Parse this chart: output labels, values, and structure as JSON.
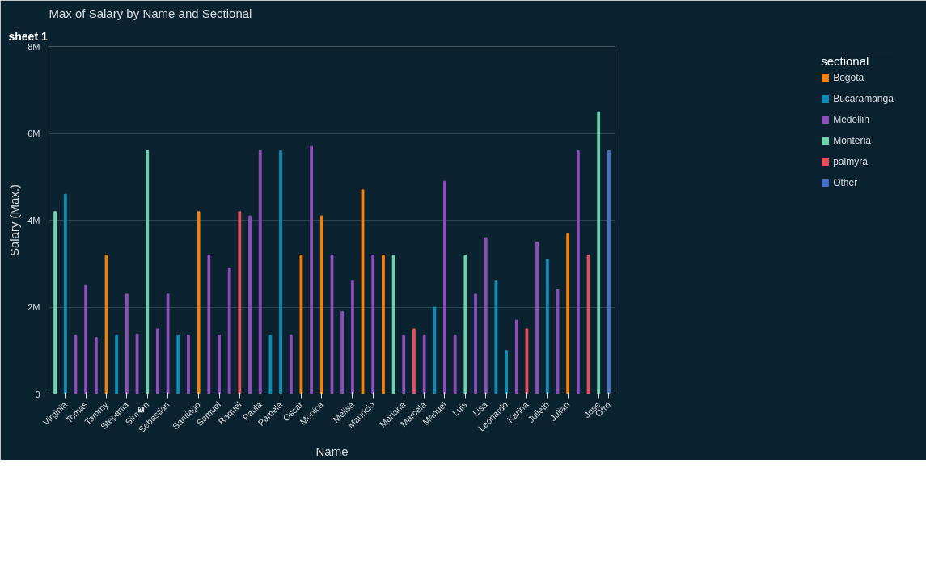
{
  "chart_data": {
    "type": "bar",
    "title": "Max of Salary by Name and Sectional",
    "xlabel": "Name",
    "ylabel": "Salary (Max.)",
    "legend_title": "sectional",
    "annotations": [
      "sheet 1"
    ],
    "categories": [
      null,
      "Virginia",
      null,
      "Tomas",
      null,
      "Tammy",
      null,
      "Stepania",
      null,
      "Sim�n",
      null,
      "Sebastian",
      null,
      null,
      "Santiago",
      null,
      "Samuel",
      null,
      "Raquel",
      null,
      "Paula",
      null,
      "Pamela",
      null,
      "Oscar",
      null,
      "Monica",
      null,
      null,
      "Melisa",
      null,
      "Mauricio",
      null,
      null,
      "Mariana",
      null,
      "Marcela",
      null,
      "Manuel",
      null,
      "Luis",
      null,
      "Lisa",
      null,
      "Leonardo",
      null,
      "Karina",
      null,
      "Julieth",
      null,
      "Julian",
      null,
      null,
      "Jose",
      "Otro"
    ],
    "ylim": [
      0,
      8000000
    ],
    "yticks": [
      0,
      {
        "value": 2000000,
        "label": "2M"
      },
      {
        "value": 4000000,
        "label": "4M"
      },
      {
        "value": 6000000,
        "label": "6M"
      },
      {
        "value": 8000000,
        "label": "8M"
      }
    ],
    "grid": "y",
    "legend": "right",
    "series": [
      {
        "name": "Bogota",
        "color": "#f5820d",
        "values": [
          null,
          null,
          null,
          null,
          null,
          3200000,
          null,
          null,
          null,
          null,
          null,
          null,
          null,
          null,
          4200000,
          null,
          null,
          null,
          null,
          null,
          null,
          null,
          null,
          null,
          3200000,
          null,
          4100000,
          null,
          null,
          null,
          4700000,
          null,
          3200000,
          null,
          null,
          null,
          null,
          null,
          null,
          null,
          null,
          null,
          null,
          null,
          null,
          null,
          null,
          null,
          null,
          null,
          3700000,
          null,
          null,
          null,
          null
        ]
      },
      {
        "name": "Bucaramanga",
        "color": "#0f8eb5",
        "values": [
          null,
          4600000,
          null,
          null,
          null,
          null,
          1360000,
          null,
          null,
          null,
          null,
          null,
          1360000,
          null,
          null,
          null,
          null,
          null,
          null,
          null,
          null,
          1360000,
          5600000,
          null,
          null,
          null,
          null,
          null,
          null,
          null,
          null,
          null,
          null,
          null,
          null,
          null,
          null,
          2000000,
          null,
          null,
          null,
          null,
          null,
          2600000,
          1000000,
          null,
          null,
          null,
          3100000,
          null,
          null,
          null,
          null,
          null,
          null
        ]
      },
      {
        "name": "Medellin",
        "color": "#8e4fb8",
        "values": [
          null,
          null,
          1360000,
          2500000,
          1300000,
          null,
          null,
          2300000,
          1380000,
          null,
          1500000,
          2300000,
          null,
          1360000,
          null,
          3200000,
          1360000,
          2900000,
          null,
          4100000,
          5600000,
          null,
          null,
          1360000,
          null,
          5700000,
          null,
          3200000,
          1900000,
          2600000,
          null,
          3200000,
          null,
          null,
          1360000,
          null,
          1360000,
          null,
          4900000,
          1360000,
          null,
          2300000,
          3600000,
          null,
          null,
          1700000,
          null,
          3500000,
          null,
          2400000,
          null,
          5600000,
          null,
          null,
          null
        ]
      },
      {
        "name": "Monteria",
        "color": "#6fd3ab",
        "values": [
          4200000,
          null,
          null,
          null,
          null,
          null,
          null,
          null,
          null,
          5600000,
          null,
          null,
          null,
          null,
          null,
          null,
          null,
          null,
          null,
          null,
          null,
          null,
          null,
          null,
          null,
          null,
          null,
          null,
          null,
          null,
          null,
          null,
          null,
          3200000,
          null,
          null,
          null,
          null,
          null,
          null,
          3200000,
          null,
          null,
          null,
          null,
          null,
          null,
          null,
          null,
          null,
          null,
          null,
          null,
          6500000,
          null
        ]
      },
      {
        "name": "palmyra",
        "color": "#e8505b",
        "values": [
          null,
          null,
          null,
          null,
          null,
          null,
          null,
          null,
          null,
          null,
          null,
          null,
          null,
          null,
          null,
          null,
          null,
          null,
          4200000,
          null,
          null,
          null,
          null,
          null,
          null,
          null,
          null,
          null,
          null,
          null,
          null,
          null,
          null,
          null,
          null,
          1500000,
          null,
          null,
          null,
          null,
          null,
          null,
          null,
          null,
          null,
          null,
          1500000,
          null,
          null,
          null,
          null,
          null,
          3200000,
          null,
          null
        ]
      },
      {
        "name": "Other",
        "color": "#4a6fc6",
        "values": [
          null,
          null,
          null,
          null,
          null,
          null,
          null,
          null,
          null,
          null,
          null,
          null,
          null,
          null,
          null,
          null,
          null,
          null,
          null,
          null,
          null,
          null,
          null,
          null,
          null,
          null,
          null,
          null,
          null,
          null,
          null,
          null,
          null,
          null,
          null,
          null,
          null,
          null,
          null,
          null,
          null,
          null,
          null,
          null,
          null,
          null,
          null,
          null,
          null,
          null,
          null,
          null,
          null,
          null,
          5600000
        ]
      }
    ]
  }
}
